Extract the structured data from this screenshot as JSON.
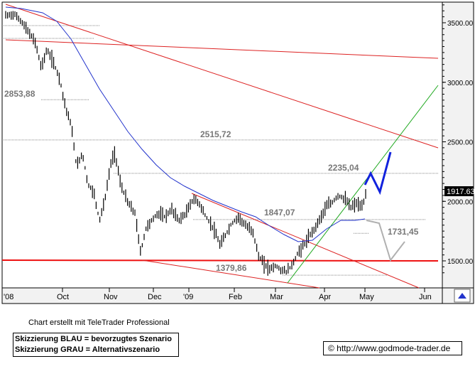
{
  "chart_data": {
    "type": "candlestick",
    "title": "",
    "xlabel": "",
    "ylabel": "",
    "ylim": [
      1380,
      3700
    ],
    "x_tick_labels": [
      "'08",
      "Oct",
      "Nov",
      "Dec",
      "'09",
      "Feb",
      "Mar",
      "Apr",
      "May",
      "Jun"
    ],
    "y_tick_labels": [
      "3500.00",
      "3000.00",
      "2500.00",
      "2000.00",
      "1500.00"
    ],
    "y_ticks": [
      3500,
      3000,
      2500,
      2000,
      1500
    ],
    "last_price": "1917.63",
    "levels": [
      {
        "label": "2853,88",
        "value": 2853.88
      },
      {
        "label": "2515,72",
        "value": 2515.72
      },
      {
        "label": "2235,04",
        "value": 2235.04
      },
      {
        "label": "1847,07",
        "value": 1847.07
      },
      {
        "label": "1731,45",
        "value": 1731.45
      },
      {
        "label": "1379,86",
        "value": 1379.86
      }
    ],
    "series": [
      {
        "name": "",
        "type": "ohlc",
        "color": "#000000"
      },
      {
        "name": "",
        "type": "moving-average",
        "color": "#2233cc"
      }
    ],
    "scenarios": [
      {
        "name": "blau",
        "color": "#1122dd"
      },
      {
        "name": "grau",
        "color": "#b0b0b0"
      }
    ],
    "colors": {
      "resistance": "#dd2222",
      "support": "#ee1111",
      "trend_up": "#22aa22",
      "axis_bg": "#f2f2f2"
    }
  },
  "footer": {
    "note": "Chart erstellt mit TeleTrader Professional",
    "legend_blue": "Skizzierung BLAU = bevorzugtes Szenario",
    "legend_grey": "Skizzierung GRAU = Alternativszenario",
    "copyright": "© http://www.godmode-trader.de"
  }
}
